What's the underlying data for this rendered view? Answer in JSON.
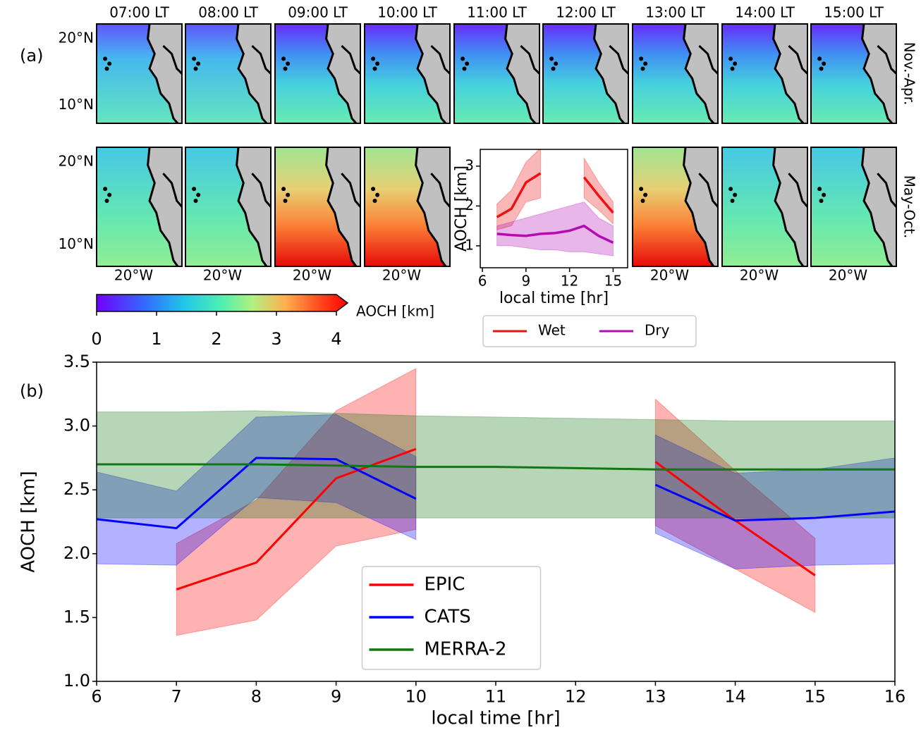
{
  "panel_labels": [
    "(a)",
    "(b)"
  ],
  "maps": {
    "columns": [
      "07:00 LT",
      "08:00 LT",
      "09:00 LT",
      "10:00 LT",
      "11:00 LT",
      "12:00 LT",
      "13:00 LT",
      "14:00 LT",
      "15:00 LT"
    ],
    "rows": [
      "Nov.-Apr.",
      "May-Oct."
    ],
    "lat_ticks": [
      "20°N",
      "10°N"
    ],
    "lon_tick": "20°W"
  },
  "colorbar": {
    "label": "AOCH [km]",
    "lim": [
      0,
      4
    ],
    "ticks": [
      0,
      1,
      2,
      3,
      4
    ]
  },
  "chart_data": [
    {
      "type": "line",
      "xlabel": "local time [hr]",
      "ylabel": "AOCH [km]",
      "x": [
        7,
        8,
        9,
        10,
        11,
        12,
        13,
        14,
        15
      ],
      "xlim": [
        5.85,
        16
      ],
      "xticks": [
        6,
        9,
        12,
        15
      ],
      "ylim": [
        0.45,
        3.42
      ],
      "yticks": [
        1,
        2,
        3
      ],
      "grid": false,
      "legend": "below",
      "series": [
        {
          "name": "Wet",
          "color": "#ee1111",
          "values": [
            1.72,
            1.93,
            2.59,
            2.82,
            null,
            null,
            2.72,
            2.26,
            1.83
          ],
          "lower": [
            1.4,
            1.5,
            2.1,
            2.2,
            null,
            null,
            2.2,
            1.9,
            1.55
          ],
          "upper": [
            2.05,
            2.4,
            3.1,
            3.45,
            null,
            null,
            3.2,
            2.6,
            2.1
          ]
        },
        {
          "name": "Dry",
          "color": "#b30cb3",
          "values": [
            1.3,
            1.27,
            1.25,
            1.3,
            1.32,
            1.38,
            1.5,
            1.25,
            1.08
          ],
          "lower": [
            1.0,
            1.0,
            0.95,
            0.9,
            0.9,
            0.85,
            0.85,
            0.8,
            0.75
          ],
          "upper": [
            1.5,
            1.6,
            1.7,
            1.8,
            1.9,
            2.0,
            2.1,
            1.7,
            1.5
          ]
        }
      ]
    },
    {
      "type": "line",
      "xlabel": "local time [hr]",
      "ylabel": "AOCH [km]",
      "x": [
        6,
        7,
        8,
        9,
        10,
        11,
        12,
        13,
        14,
        15,
        16
      ],
      "xlim": [
        6,
        16
      ],
      "xticks": [
        6,
        7,
        8,
        9,
        10,
        11,
        12,
        13,
        14,
        15,
        16
      ],
      "ylim": [
        1.0,
        3.5
      ],
      "yticks": [
        {
          "value": 1.0,
          "label": "1.0"
        },
        1.5,
        {
          "value": 2.0,
          "label": "2.0"
        },
        2.5,
        {
          "value": 3.0,
          "label": "3.0"
        },
        3.5
      ],
      "grid": false,
      "legend": "lower center",
      "series": [
        {
          "name": "EPIC",
          "color": "#ff0000",
          "values": [
            null,
            1.72,
            1.93,
            2.59,
            2.82,
            null,
            null,
            2.72,
            2.26,
            1.83,
            null
          ],
          "lower": [
            null,
            1.36,
            1.48,
            2.06,
            2.19,
            null,
            null,
            2.22,
            1.88,
            1.54,
            null
          ],
          "upper": [
            null,
            2.08,
            2.42,
            3.12,
            3.45,
            null,
            null,
            3.21,
            2.65,
            2.12,
            null
          ]
        },
        {
          "name": "CATS",
          "color": "#0000ff",
          "values": [
            2.27,
            2.2,
            2.75,
            2.74,
            2.43,
            null,
            null,
            2.54,
            2.26,
            2.28,
            2.33
          ],
          "lower": [
            1.92,
            1.91,
            2.44,
            2.4,
            2.11,
            null,
            null,
            2.16,
            1.88,
            1.91,
            1.92
          ],
          "upper": [
            2.64,
            2.49,
            3.07,
            3.09,
            2.76,
            null,
            null,
            2.93,
            2.63,
            2.66,
            2.75
          ]
        },
        {
          "name": "MERRA-2",
          "color": "#117711",
          "values": [
            2.7,
            2.7,
            2.7,
            2.69,
            2.68,
            2.68,
            2.67,
            2.66,
            2.66,
            2.66,
            2.66
          ],
          "lower": [
            2.28,
            2.28,
            2.28,
            2.28,
            2.28,
            2.28,
            2.28,
            2.28,
            2.28,
            2.28,
            2.28
          ],
          "upper": [
            3.11,
            3.11,
            3.12,
            3.1,
            3.08,
            3.07,
            3.06,
            3.05,
            3.04,
            3.04,
            3.04
          ]
        }
      ]
    }
  ]
}
